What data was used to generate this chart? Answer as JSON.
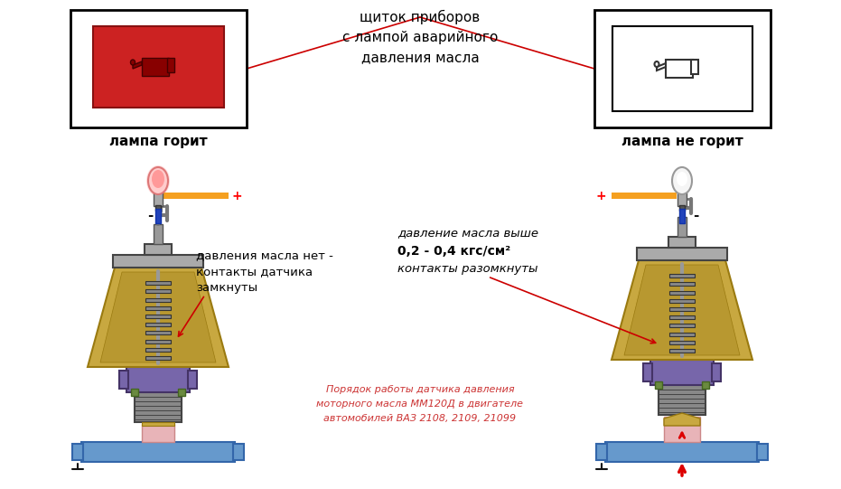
{
  "title_text": "щиток приборов\nс лампой аварийного\nдавления масла",
  "left_label": "лампа горит",
  "right_label": "лампа не горит",
  "left_note_l1": "давления масла нет -",
  "left_note_l2": "контакты датчика",
  "left_note_l3": "замкнуты",
  "right_note_l1": "давление масла выше",
  "right_note_l2": "0,2 - 0,4 кгс/см²",
  "right_note_l3": "контакты разомкнуты",
  "bottom_l1": "Порядок работы датчика давления",
  "bottom_l2": "моторного масла ММ120Д в двигателе",
  "bottom_l3": "автомобилей ВАЗ 2108, 2109, 21099",
  "orange": "#f5a020",
  "blue_pipe": "#6699cc",
  "blue_pipe_dark": "#3366aa",
  "blue_wire": "#3344cc",
  "blue_seg": "#2233bb",
  "gold": "#c8a840",
  "gold_dark": "#9a7a10",
  "gray_thread": "#888888",
  "gray_cap": "#aaaaaa",
  "gray_hook": "#777777",
  "purple": "#7766aa",
  "purple_dark": "#443366",
  "pink": "#e8b4b8",
  "green_ring": "#6a8a40",
  "red_arrow": "#dd0000",
  "red_line": "#cc0000",
  "red_icon": "#cc2222",
  "text_red": "#cc3333",
  "black": "#111111"
}
